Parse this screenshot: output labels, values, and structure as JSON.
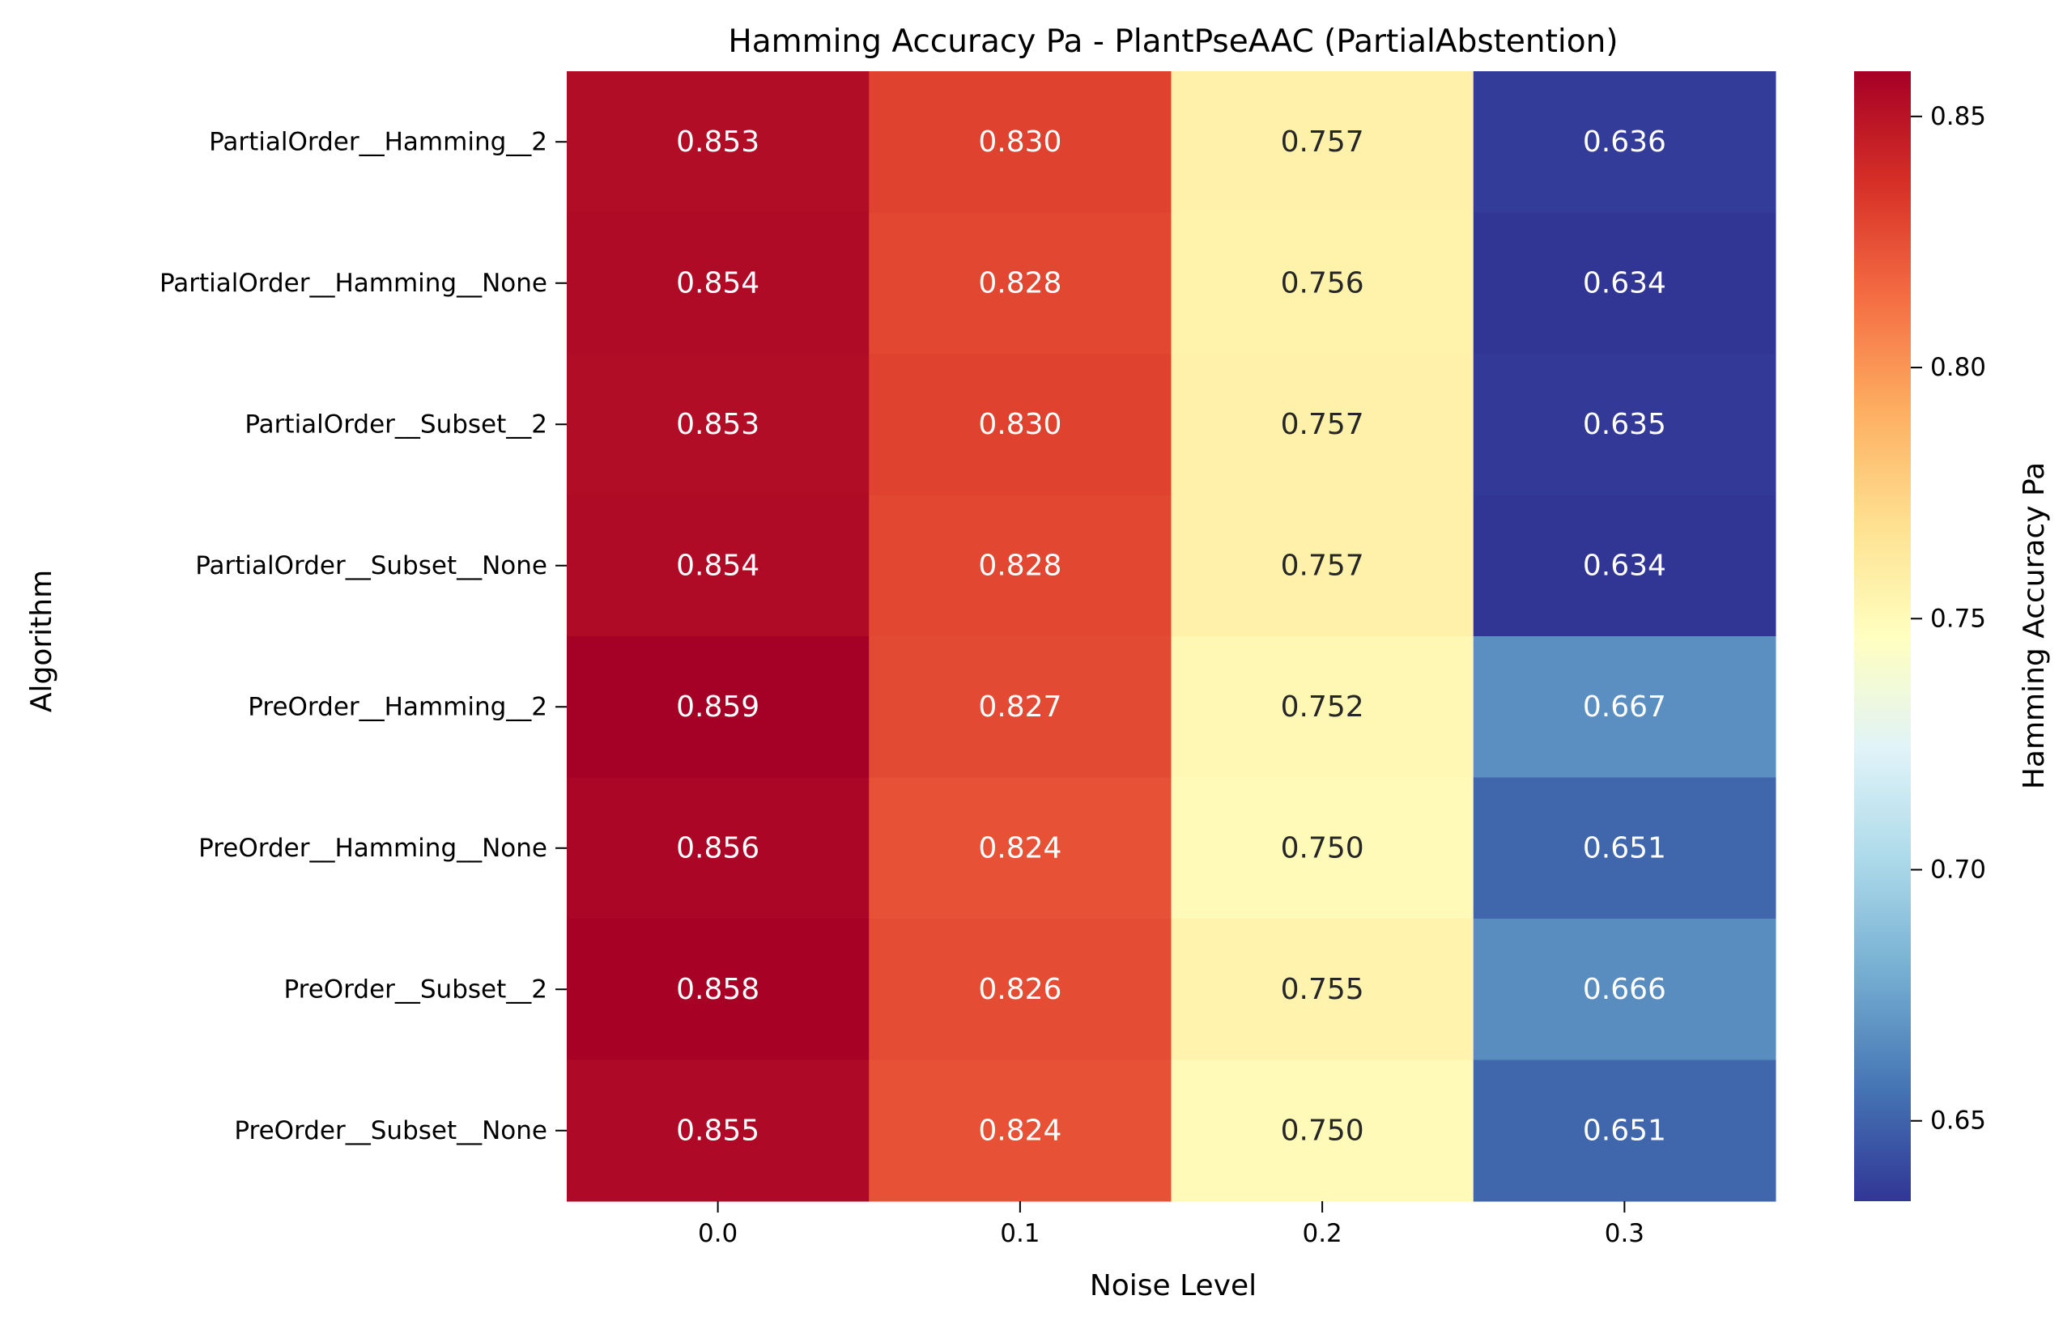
{
  "chart_data": {
    "type": "heatmap",
    "title": "Hamming Accuracy Pa - PlantPseAAC (PartialAbstention)",
    "xlabel": "Noise Level",
    "ylabel": "Algorithm",
    "colorbar_label": "Hamming Accuracy Pa",
    "colormap": "RdYlBu_r",
    "value_range": [
      0.634,
      0.859
    ],
    "x_tick_labels": [
      "0.0",
      "0.1",
      "0.2",
      "0.3"
    ],
    "y_tick_labels": [
      "PartialOrder__Hamming__2",
      "PartialOrder__Hamming__None",
      "PartialOrder__Subset__2",
      "PartialOrder__Subset__None",
      "PreOrder__Hamming__2",
      "PreOrder__Hamming__None",
      "PreOrder__Subset__2",
      "PreOrder__Subset__None"
    ],
    "values": [
      [
        0.853,
        0.83,
        0.757,
        0.636
      ],
      [
        0.854,
        0.828,
        0.756,
        0.634
      ],
      [
        0.853,
        0.83,
        0.757,
        0.635
      ],
      [
        0.854,
        0.828,
        0.757,
        0.634
      ],
      [
        0.859,
        0.827,
        0.752,
        0.667
      ],
      [
        0.856,
        0.824,
        0.75,
        0.651
      ],
      [
        0.858,
        0.826,
        0.755,
        0.666
      ],
      [
        0.855,
        0.824,
        0.75,
        0.651
      ]
    ],
    "cell_labels": [
      [
        "0.853",
        "0.830",
        "0.757",
        "0.636"
      ],
      [
        "0.854",
        "0.828",
        "0.756",
        "0.634"
      ],
      [
        "0.853",
        "0.830",
        "0.757",
        "0.635"
      ],
      [
        "0.854",
        "0.828",
        "0.757",
        "0.634"
      ],
      [
        "0.859",
        "0.827",
        "0.752",
        "0.667"
      ],
      [
        "0.856",
        "0.824",
        "0.750",
        "0.651"
      ],
      [
        "0.858",
        "0.826",
        "0.755",
        "0.666"
      ],
      [
        "0.855",
        "0.824",
        "0.750",
        "0.651"
      ]
    ],
    "colorbar_ticks": [
      0.65,
      0.7,
      0.75,
      0.8,
      0.85
    ],
    "colorbar_tick_labels": [
      "0.65",
      "0.70",
      "0.75",
      "0.80",
      "0.85"
    ]
  }
}
